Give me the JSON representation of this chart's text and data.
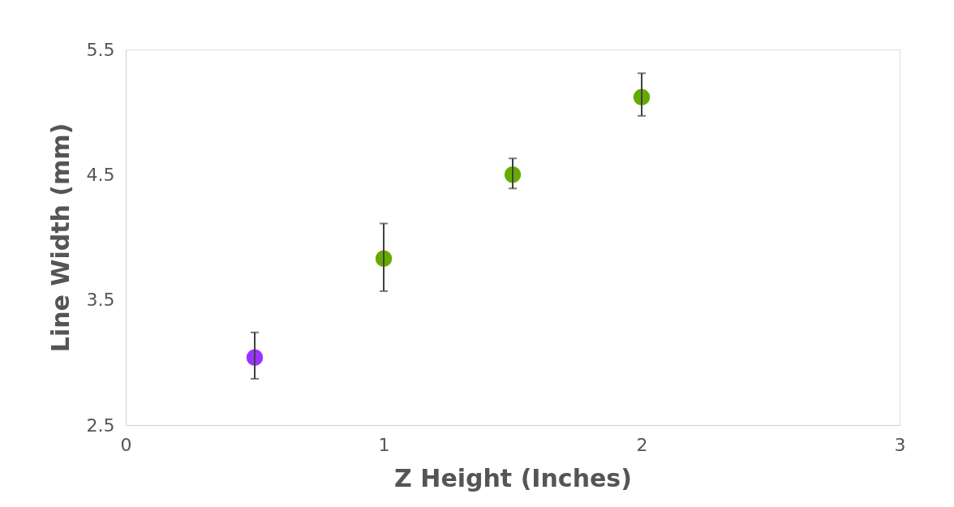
{
  "chart_data": {
    "type": "scatter",
    "xlabel": "Z Height (Inches)",
    "ylabel": "Line Width (mm)",
    "x": [
      0.5,
      1,
      1.5,
      2
    ],
    "values": [
      3.04,
      3.83,
      4.5,
      5.12
    ],
    "errors": [
      [
        2.87,
        3.24
      ],
      [
        3.57,
        4.11
      ],
      [
        4.39,
        4.63
      ],
      [
        4.97,
        5.31
      ]
    ],
    "colors": [
      "#9933ff",
      "#66aa00",
      "#66aa00",
      "#66aa00"
    ],
    "xlim": [
      0,
      3
    ],
    "xticks": [
      0,
      1,
      2,
      3
    ],
    "ylim": [
      2.5,
      5.5
    ],
    "yticks": [
      2.5,
      3.5,
      4.5,
      5.5
    ],
    "grid": false,
    "legend": false,
    "marker": "circle"
  }
}
